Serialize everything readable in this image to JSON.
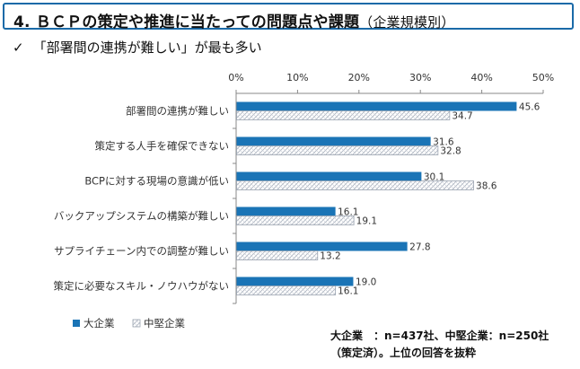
{
  "slide": {
    "title_main": "4. ＢＣＰの策定や推進に当たっての問題点や課題",
    "title_sub": "（企業規模別）",
    "check_symbol": "✓",
    "subtitle": "「部署間の連携が難しい」が最も多い",
    "note_line1": "大企業　：n=437社、中堅企業：n=250社",
    "note_line2": "（策定済）。上位の回答を抜粋"
  },
  "colors": {
    "series1": "#1a74b6",
    "series2_pattern": "#b8c0cc",
    "title_border": "#1a6aa8"
  },
  "chart_data": {
    "type": "bar",
    "orientation": "horizontal",
    "categories": [
      "部署間の連携が難しい",
      "策定する人手を確保できない",
      "BCPに対する現場の意識が低い",
      "バックアップシステムの構築が難しい",
      "サプライチェーン内での調整が難しい",
      "策定に必要なスキル・ノウハウがない"
    ],
    "series": [
      {
        "name": "大企業",
        "values": [
          45.6,
          31.6,
          30.1,
          16.1,
          27.8,
          19.0
        ],
        "labels": [
          "45.6",
          "31.6",
          "30.1",
          "16.1",
          "27.8",
          "19.0"
        ]
      },
      {
        "name": "中堅企業",
        "values": [
          34.7,
          32.8,
          38.6,
          19.1,
          13.2,
          16.1
        ],
        "labels": [
          "34.7",
          "32.8",
          "38.6",
          "19.1",
          "13.2",
          "16.1"
        ]
      }
    ],
    "xlim": [
      0,
      50
    ],
    "xticks": [
      "0%",
      "10%",
      "20%",
      "30%",
      "40%",
      "50%"
    ],
    "xtick_values": [
      0,
      10,
      20,
      30,
      40,
      50
    ],
    "axis_position": "top",
    "legend": "bottom-left",
    "grid": false
  }
}
